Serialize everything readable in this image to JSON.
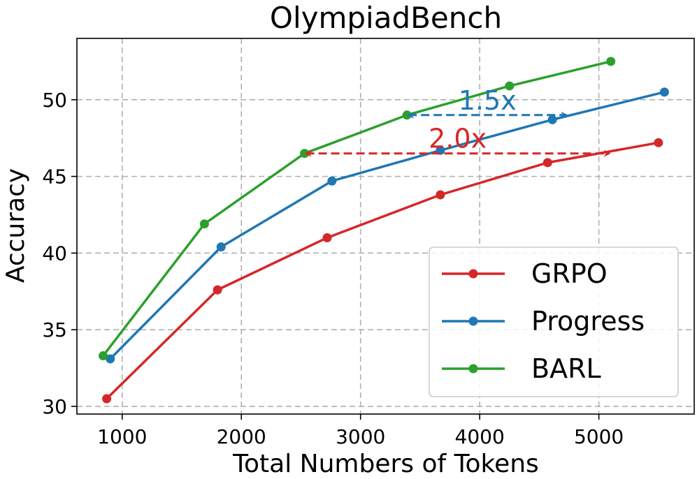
{
  "chart_data": {
    "type": "line",
    "title": "OlympiadBench",
    "xlabel": "Total Numbers of Tokens",
    "ylabel": "Accuracy",
    "xlim": [
      620,
      5800
    ],
    "ylim": [
      29.5,
      54.0
    ],
    "xticks": [
      1000,
      2000,
      3000,
      4000,
      5000
    ],
    "yticks": [
      30,
      35,
      40,
      45,
      50
    ],
    "grid": true,
    "legend": "lower-right",
    "series": [
      {
        "name": "GRPO",
        "color": "#d62728",
        "x": [
          870,
          1800,
          2720,
          3670,
          4570,
          5500
        ],
        "y": [
          30.5,
          37.6,
          41.0,
          43.8,
          45.9,
          47.2
        ]
      },
      {
        "name": "Progress",
        "color": "#1f77b4",
        "x": [
          900,
          1830,
          2760,
          3670,
          4610,
          5550
        ],
        "y": [
          33.1,
          40.4,
          44.7,
          46.7,
          48.7,
          50.5
        ]
      },
      {
        "name": "BARL",
        "color": "#2ca02c",
        "x": [
          840,
          1690,
          2530,
          3390,
          4250,
          5100
        ],
        "y": [
          33.3,
          41.9,
          46.5,
          49.0,
          50.9,
          52.5
        ]
      }
    ],
    "annotations": [
      {
        "text": "1.5x",
        "color": "#1f77b4",
        "x_start": 3390,
        "x_end": 4740,
        "y": 49.0
      },
      {
        "text": "2.0x",
        "color": "#d62728",
        "x_start": 2530,
        "x_end": 5100,
        "y": 46.5
      }
    ]
  }
}
